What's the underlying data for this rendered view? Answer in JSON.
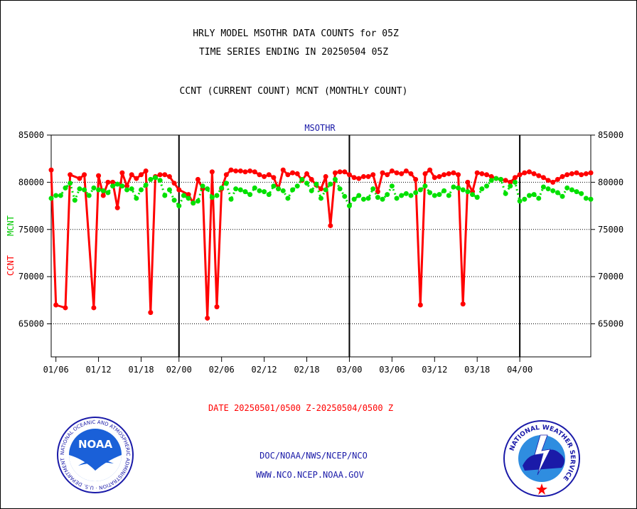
{
  "header": {
    "title_line1": "HRLY MODEL MSOTHR DATA COUNTS for 05Z",
    "title_line2": "TIME SERIES ENDING IN 20250504 05Z",
    "subtitle": "CCNT (CURRENT COUNT) MCNT (MONTHLY COUNT)"
  },
  "footer": {
    "date_range": "DATE 20250501/0500 Z-20250504/0500 Z",
    "org_path": "DOC/NOAA/NWS/NCEP/NCO",
    "website": "WWW.NCO.NCEP.NOAA.GOV"
  },
  "logos": {
    "noaa_text": "NOAA",
    "noaa_ring_text": "NATIONAL OCEANIC AND ATMOSPHERIC ADMINISTRATION · U.S. DEPARTMENT OF COMMERCE ·",
    "nws_ring_text": "NATIONAL WEATHER SERVICE"
  },
  "colors": {
    "ccnt": "#ff0000",
    "mcnt": "#00e000",
    "axis": "#000000",
    "station_label": "#1a1aa8"
  },
  "chart_data": {
    "type": "line",
    "plot_label": "MSOTHR",
    "ylabel_ccnt": "CCNT",
    "ylabel_mcnt": "MCNT",
    "ylim": [
      61500,
      85000
    ],
    "yticks": [
      65000,
      70000,
      75000,
      80000,
      85000
    ],
    "ytick_labels": [
      "65000",
      "70000",
      "75000",
      "80000",
      "85000"
    ],
    "xlim": [
      0,
      114
    ],
    "x_ticks": [
      {
        "label": "01/06",
        "x": 1
      },
      {
        "label": "01/12",
        "x": 10
      },
      {
        "label": "01/18",
        "x": 19
      },
      {
        "label": "02/00",
        "x": 27
      },
      {
        "label": "02/06",
        "x": 36
      },
      {
        "label": "02/12",
        "x": 45
      },
      {
        "label": "02/18",
        "x": 54
      },
      {
        "label": "03/00",
        "x": 63
      },
      {
        "label": "03/06",
        "x": 72
      },
      {
        "label": "03/12",
        "x": 81
      },
      {
        "label": "03/18",
        "x": 90
      },
      {
        "label": "04/00",
        "x": 99
      }
    ],
    "day_boundaries": [
      27,
      63,
      99
    ],
    "grid": "horizontal dotted",
    "series": [
      {
        "name": "CCNT",
        "style": "solid",
        "x": [
          0,
          1,
          3,
          4,
          6,
          7,
          9,
          10,
          11,
          12,
          13,
          14,
          15,
          16,
          17,
          18,
          19,
          20,
          21,
          22,
          23,
          24,
          25,
          26,
          27,
          29,
          30,
          31,
          32,
          33,
          34,
          35,
          36,
          37,
          38,
          39,
          40,
          41,
          42,
          43,
          44,
          45,
          46,
          47,
          48,
          49,
          50,
          51,
          52,
          53,
          54,
          55,
          56,
          57,
          58,
          59,
          60,
          61,
          62,
          63,
          64,
          65,
          66,
          67,
          68,
          69,
          70,
          71,
          72,
          73,
          74,
          75,
          76,
          77,
          78,
          79,
          80,
          81,
          82,
          83,
          84,
          85,
          86,
          87,
          88,
          89,
          90,
          91,
          92,
          93,
          94,
          95,
          96,
          97,
          98,
          99,
          100,
          101,
          102,
          103,
          104,
          105,
          106,
          107,
          108,
          109,
          110,
          111,
          112,
          113,
          114
        ],
        "values": [
          81300,
          67000,
          66700,
          80800,
          80400,
          80800,
          66700,
          80700,
          78600,
          80000,
          80000,
          77300,
          81000,
          79600,
          80800,
          80400,
          80800,
          81200,
          66200,
          80600,
          80800,
          80800,
          80600,
          79900,
          79200,
          78700,
          77800,
          80300,
          79300,
          65600,
          81100,
          66800,
          79300,
          80800,
          81300,
          81200,
          81200,
          81100,
          81200,
          81100,
          80800,
          80600,
          80800,
          80500,
          79300,
          81300,
          80800,
          81000,
          80900,
          80200,
          80900,
          80300,
          79700,
          79300,
          80600,
          75400,
          81000,
          81100,
          81100,
          80800,
          80500,
          80400,
          80600,
          80600,
          80800,
          79000,
          81000,
          80800,
          81200,
          81000,
          80900,
          81200,
          80900,
          80300,
          67000,
          80900,
          81300,
          80500,
          80600,
          80800,
          80900,
          81000,
          80800,
          67100,
          80000,
          79000,
          81000,
          80900,
          80800,
          80600,
          80400,
          80300,
          80200,
          80000,
          80500,
          80800,
          81000,
          81100,
          80900,
          80700,
          80500,
          80200,
          80000,
          80300,
          80600,
          80800,
          80900,
          81000,
          80800,
          80900,
          81000
        ]
      },
      {
        "name": "MCNT",
        "style": "dotted",
        "x": [
          0,
          1,
          2,
          3,
          4,
          5,
          6,
          7,
          8,
          9,
          10,
          11,
          12,
          13,
          14,
          15,
          16,
          17,
          18,
          19,
          20,
          21,
          22,
          23,
          24,
          25,
          26,
          27,
          28,
          29,
          30,
          31,
          32,
          33,
          34,
          35,
          36,
          37,
          38,
          39,
          40,
          41,
          42,
          43,
          44,
          45,
          46,
          47,
          48,
          49,
          50,
          51,
          52,
          53,
          54,
          55,
          56,
          57,
          58,
          59,
          60,
          61,
          62,
          63,
          64,
          65,
          66,
          67,
          68,
          69,
          70,
          71,
          72,
          73,
          74,
          75,
          76,
          77,
          78,
          79,
          80,
          81,
          82,
          83,
          84,
          85,
          86,
          87,
          88,
          89,
          90,
          91,
          92,
          93,
          94,
          95,
          96,
          97,
          98,
          99,
          100,
          101,
          102,
          103,
          104,
          105,
          106,
          107,
          108,
          109,
          110,
          111,
          112,
          113,
          114
        ],
        "values": [
          78300,
          78600,
          78600,
          79400,
          79900,
          78100,
          79300,
          79200,
          78600,
          79400,
          79200,
          79100,
          78900,
          79600,
          79800,
          79600,
          79200,
          79300,
          78300,
          79200,
          79700,
          80300,
          80500,
          80200,
          78600,
          79200,
          78100,
          77500,
          78600,
          78300,
          77800,
          78000,
          79600,
          79300,
          78400,
          78600,
          79400,
          79900,
          78200,
          79300,
          79200,
          79000,
          78700,
          79400,
          79100,
          79000,
          78700,
          79600,
          79300,
          79100,
          78300,
          79200,
          79600,
          80300,
          79900,
          79100,
          79800,
          78300,
          79200,
          79800,
          80300,
          79300,
          78500,
          77500,
          78200,
          78600,
          78200,
          78300,
          79300,
          78400,
          78200,
          78700,
          79600,
          78300,
          78600,
          78800,
          78600,
          78900,
          79200,
          79600,
          78900,
          78600,
          78700,
          79100,
          78600,
          79500,
          79400,
          79200,
          79000,
          78700,
          78400,
          79300,
          79600,
          80200,
          80400,
          80300,
          78800,
          79600,
          80000,
          78000,
          78200,
          78600,
          78700,
          78300,
          79500,
          79300,
          79100,
          78900,
          78500,
          79400,
          79200,
          79000,
          78800,
          78300,
          78200
        ]
      }
    ]
  }
}
